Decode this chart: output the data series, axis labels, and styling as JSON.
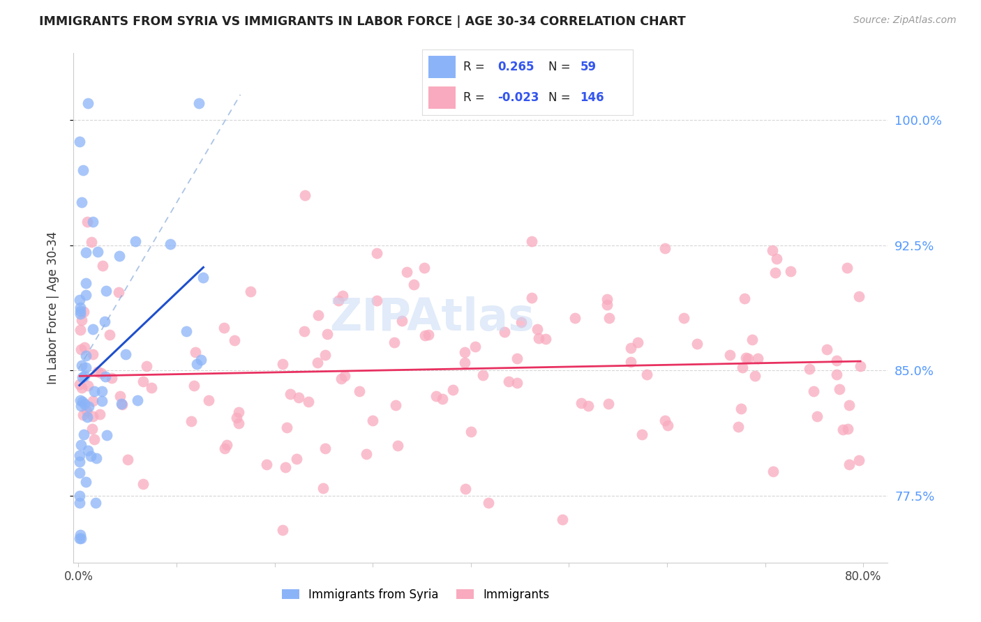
{
  "title": "IMMIGRANTS FROM SYRIA VS IMMIGRANTS IN LABOR FORCE | AGE 30-34 CORRELATION CHART",
  "source": "Source: ZipAtlas.com",
  "ylabel": "In Labor Force | Age 30-34",
  "ytick_labels": [
    "77.5%",
    "85.0%",
    "92.5%",
    "100.0%"
  ],
  "ytick_values": [
    0.775,
    0.85,
    0.925,
    1.0
  ],
  "ymin": 0.735,
  "ymax": 1.04,
  "xmin": -0.005,
  "xmax": 0.825,
  "legend_blue_r": "0.265",
  "legend_blue_n": "59",
  "legend_pink_r": "-0.023",
  "legend_pink_n": "146",
  "blue_color": "#8BB4F8",
  "pink_color": "#F9AABE",
  "blue_line_color": "#1E4FCC",
  "pink_line_color": "#E83060",
  "dash_color": "#AACCEE",
  "watermark_color": "#C5D8F5",
  "title_color": "#222222",
  "source_color": "#999999",
  "ylabel_color": "#333333",
  "ytick_color": "#5599FF",
  "xtick_color": "#444444",
  "grid_color": "#CCCCCC",
  "legend_text_color": "#222222",
  "legend_val_color": "#3355EE"
}
